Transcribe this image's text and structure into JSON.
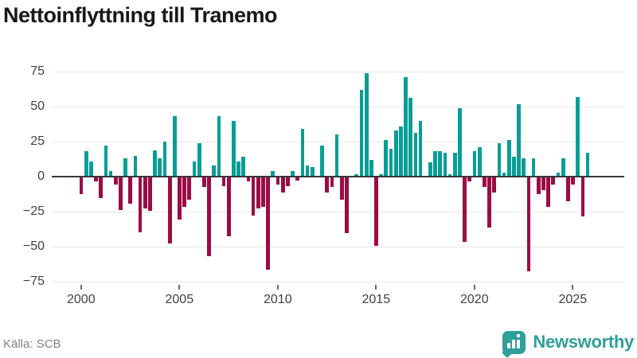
{
  "title": "Nettoinflyttning till Tranemo",
  "footer": {
    "source": "Källa: SCB",
    "brand": "Newsworthy",
    "brand_icon": "newsworthy-badge-bar-chart-icon"
  },
  "colors": {
    "positive": "#089e96",
    "negative": "#9c0b45",
    "brand_teal": "#2f9f9a",
    "axis_text": "#3f3f3f",
    "gridline": "#e8e8e8",
    "zeroline": "#37373a"
  },
  "chart_data": {
    "type": "bar",
    "title": "Nettoinflyttning till Tranemo",
    "xlabel": "",
    "ylabel": "",
    "frequency": "quarterly",
    "x_start": "2000-Q1",
    "x_end": "2025-Q4",
    "x_tick_years": [
      2000,
      2005,
      2010,
      2015,
      2020,
      2025
    ],
    "y_ticks": [
      75,
      50,
      25,
      0,
      -25,
      -50,
      -75
    ],
    "ylim": [
      -85,
      85
    ],
    "grid": "horizontal",
    "legend": "none",
    "series": [
      {
        "name": "Nettoinflyttning",
        "values": [
          -12,
          18,
          11,
          -3,
          -15,
          22,
          4,
          -5,
          -23,
          13,
          -19,
          15,
          -39,
          -22,
          -24,
          19,
          13,
          25,
          -47,
          43,
          -30,
          -21,
          -16,
          11,
          24,
          -7,
          -56,
          8,
          43,
          -6,
          -42,
          40,
          11,
          14,
          -3,
          -27,
          -22,
          -21,
          -66,
          4,
          -5,
          -11,
          -6,
          4,
          -2,
          34,
          8,
          7,
          0,
          22,
          -11,
          -7,
          30,
          -16,
          -40,
          0,
          2,
          62,
          74,
          12,
          -49,
          2,
          26,
          20,
          33,
          36,
          71,
          56,
          31,
          40,
          0,
          10,
          18,
          18,
          17,
          2,
          17,
          49,
          -46,
          -3,
          18,
          21,
          -7,
          -36,
          -11,
          24,
          3,
          26,
          14,
          52,
          13,
          -67,
          13,
          -12,
          -9,
          -21,
          -5,
          3,
          13,
          -17,
          -5,
          57,
          -28,
          17
        ]
      }
    ]
  }
}
